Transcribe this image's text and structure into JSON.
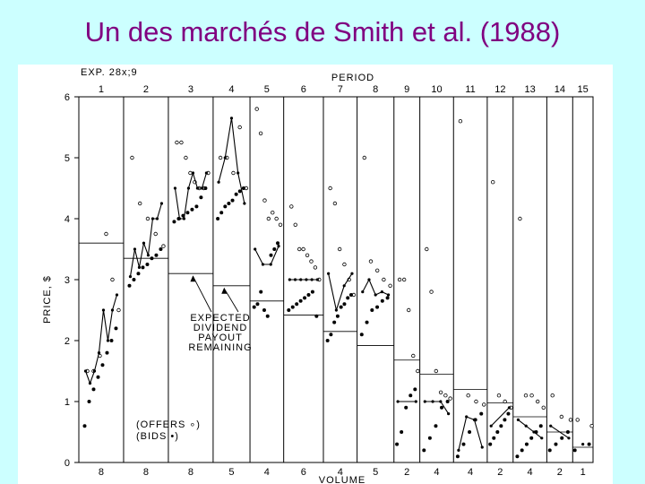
{
  "slide_title": "Un des marchés de Smith et al. (1988)",
  "chart_data": {
    "type": "scatter",
    "experiment_label": "EXP. 28x;9",
    "period_title": "PERIOD",
    "ylabel": "PRICE, $",
    "xlabel": "VOLUME",
    "ylim": [
      0,
      6
    ],
    "y_ticks": [
      "0",
      "1",
      "2",
      "3",
      "4",
      "5",
      "6"
    ],
    "legend": {
      "offers": "(OFFERS ∘)",
      "bids": "(BIDS •)"
    },
    "annotation": [
      "EXPECTED",
      "DIVIDEND",
      "PAYOUT",
      "REMAINING"
    ],
    "periods": [
      {
        "label": "1",
        "volume": "8",
        "dividend": 3.6,
        "trades": [
          1.5,
          1.3,
          1.5,
          1.8,
          2.5,
          2.0,
          2.5,
          2.75
        ],
        "offers": [
          1.5,
          1.5,
          1.75,
          3.75,
          3.0,
          2.5
        ],
        "bids": [
          0.6,
          1.0,
          1.2,
          1.4,
          1.6,
          1.8,
          2.0,
          2.2
        ]
      },
      {
        "label": "2",
        "volume": "8",
        "dividend": 3.35,
        "trades": [
          3.05,
          3.5,
          3.2,
          3.6,
          3.4,
          4.0,
          4.0,
          4.25
        ],
        "offers": [
          5.0,
          4.25,
          4.0,
          3.75,
          3.55
        ],
        "bids": [
          2.9,
          3.0,
          3.1,
          3.2,
          3.25,
          3.35,
          3.4,
          3.5
        ]
      },
      {
        "label": "3",
        "volume": "8",
        "dividend": 3.1,
        "trades": [
          4.5,
          4.0,
          4.0,
          4.5,
          4.75,
          4.5,
          4.5,
          4.75
        ],
        "offers": [
          5.25,
          5.25,
          5.0,
          4.75,
          4.6,
          4.5,
          4.5,
          4.75
        ],
        "bids": [
          3.95,
          4.0,
          4.05,
          4.1,
          4.15,
          4.2,
          4.35,
          4.5
        ]
      },
      {
        "label": "4",
        "volume": "5",
        "dividend": 2.9,
        "trades": [
          4.6,
          5.0,
          5.65,
          4.75,
          4.25
        ],
        "offers": [
          5.0,
          5.0,
          4.75,
          5.5,
          4.5
        ],
        "bids": [
          4.0,
          4.1,
          4.2,
          4.25,
          4.3,
          4.4,
          4.45,
          4.5
        ]
      },
      {
        "label": "5",
        "volume": "4",
        "dividend": 2.65,
        "trades": [
          3.5,
          3.25,
          3.25,
          3.55
        ],
        "offers": [
          5.8,
          5.4,
          4.3,
          4.0,
          4.1,
          4.0,
          3.9
        ],
        "bids": [
          2.55,
          2.6,
          2.8,
          2.5,
          2.4,
          3.4,
          3.5,
          3.6
        ]
      },
      {
        "label": "6",
        "volume": "6",
        "dividend": 2.42,
        "trades": [
          3.0,
          3.0,
          3.0,
          3.0,
          3.0,
          3.0
        ],
        "offers": [
          4.2,
          3.9,
          3.5,
          3.5,
          3.4,
          3.3,
          3.2,
          3.0
        ],
        "bids": [
          2.5,
          2.55,
          2.6,
          2.65,
          2.7,
          2.75,
          2.8,
          2.4
        ]
      },
      {
        "label": "7",
        "volume": "4",
        "dividend": 2.15,
        "trades": [
          3.1,
          2.5,
          2.9,
          3.1
        ],
        "offers": [
          4.5,
          4.25,
          3.5,
          3.25,
          3.0,
          2.75
        ],
        "bids": [
          2.0,
          2.1,
          2.3,
          2.4,
          2.55,
          2.6,
          2.7,
          2.75
        ]
      },
      {
        "label": "8",
        "volume": "5",
        "dividend": 1.92,
        "trades": [
          2.8,
          3.0,
          2.75,
          2.8,
          2.75
        ],
        "offers": [
          5.0,
          3.3,
          3.15,
          3.0,
          2.9
        ],
        "bids": [
          2.1,
          2.3,
          2.5,
          2.55,
          2.65,
          2.7
        ]
      },
      {
        "label": "9",
        "volume": "2",
        "dividend": 1.68,
        "trades": [
          1.0,
          1.0
        ],
        "offers": [
          3.0,
          3.0,
          2.5,
          1.75,
          1.5
        ],
        "bids": [
          0.3,
          0.5,
          0.9,
          1.1,
          1.2
        ]
      },
      {
        "label": "10",
        "volume": "4",
        "dividend": 1.45,
        "trades": [
          1.0,
          1.0,
          1.0,
          0.8
        ],
        "offers": [
          3.5,
          2.8,
          1.5,
          1.15,
          1.1,
          1.05
        ],
        "bids": [
          0.2,
          0.4,
          0.6,
          0.9,
          1.0
        ]
      },
      {
        "label": "11",
        "volume": "4",
        "dividend": 1.2,
        "trades": [
          0.2,
          0.75,
          0.7,
          0.25
        ],
        "offers": [
          5.6,
          1.1,
          1.0,
          0.95
        ],
        "bids": [
          0.1,
          0.3,
          0.5,
          0.7,
          0.8
        ]
      },
      {
        "label": "12",
        "volume": "2",
        "dividend": 0.98,
        "trades": [
          0.6,
          0.9
        ],
        "offers": [
          4.6,
          1.1,
          1.0,
          0.9
        ],
        "bids": [
          0.3,
          0.4,
          0.5,
          0.6,
          0.7,
          0.8
        ]
      },
      {
        "label": "13",
        "volume": "4",
        "dividend": 0.75,
        "trades": [
          0.7,
          0.6,
          0.5,
          0.4
        ],
        "offers": [
          4.0,
          1.1,
          1.1,
          1.0,
          0.9
        ],
        "bids": [
          0.1,
          0.2,
          0.3,
          0.4,
          0.5,
          0.6
        ]
      },
      {
        "label": "14",
        "volume": "2",
        "dividend": 0.5,
        "trades": [
          0.6,
          0.4
        ],
        "offers": [
          1.1,
          0.75,
          0.7
        ],
        "bids": [
          0.2,
          0.3,
          0.4,
          0.5
        ]
      },
      {
        "label": "15",
        "volume": "1",
        "dividend": 0.25,
        "trades": [
          0.3
        ],
        "offers": [
          0.7,
          0.6
        ],
        "bids": [
          0.2,
          0.3
        ]
      }
    ]
  }
}
